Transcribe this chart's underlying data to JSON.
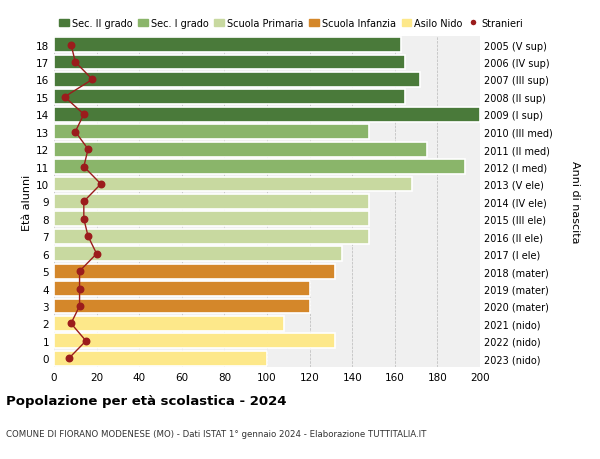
{
  "ages": [
    0,
    1,
    2,
    3,
    4,
    5,
    6,
    7,
    8,
    9,
    10,
    11,
    12,
    13,
    14,
    15,
    16,
    17,
    18
  ],
  "bar_values": [
    100,
    132,
    108,
    120,
    120,
    132,
    135,
    148,
    148,
    148,
    168,
    193,
    175,
    148,
    200,
    165,
    172,
    165,
    163
  ],
  "bar_colors": [
    "#fde88a",
    "#fde88a",
    "#fde88a",
    "#d4872a",
    "#d4872a",
    "#d4872a",
    "#c8d9a0",
    "#c8d9a0",
    "#c8d9a0",
    "#c8d9a0",
    "#c8d9a0",
    "#8ab56a",
    "#8ab56a",
    "#8ab56a",
    "#4a7a3a",
    "#4a7a3a",
    "#4a7a3a",
    "#4a7a3a",
    "#4a7a3a"
  ],
  "stranieri_values": [
    7,
    15,
    8,
    12,
    12,
    12,
    20,
    16,
    14,
    14,
    22,
    14,
    16,
    10,
    14,
    5,
    18,
    10,
    8
  ],
  "right_labels": [
    "2023 (nido)",
    "2022 (nido)",
    "2021 (nido)",
    "2020 (mater)",
    "2019 (mater)",
    "2018 (mater)",
    "2017 (I ele)",
    "2016 (II ele)",
    "2015 (III ele)",
    "2014 (IV ele)",
    "2013 (V ele)",
    "2012 (I med)",
    "2011 (II med)",
    "2010 (III med)",
    "2009 (I sup)",
    "2008 (II sup)",
    "2007 (III sup)",
    "2006 (IV sup)",
    "2005 (V sup)"
  ],
  "legend_labels": [
    "Sec. II grado",
    "Sec. I grado",
    "Scuola Primaria",
    "Scuola Infanzia",
    "Asilo Nido",
    "Stranieri"
  ],
  "legend_colors": [
    "#4a7a3a",
    "#8ab56a",
    "#c8d9a0",
    "#d4872a",
    "#fde88a",
    "#9b1c1c"
  ],
  "title": "Popolazione per età scolastica - 2024",
  "subtitle": "COMUNE DI FIORANO MODENESE (MO) - Dati ISTAT 1° gennaio 2024 - Elaborazione TUTTITALIA.IT",
  "ylabel_left": "Età alunni",
  "ylabel_right": "Anni di nascita",
  "xlim": [
    0,
    200
  ],
  "xticks": [
    0,
    20,
    40,
    60,
    80,
    100,
    120,
    140,
    160,
    180,
    200
  ],
  "bg_color": "#ffffff",
  "plot_bg_color": "#f0f0f0"
}
